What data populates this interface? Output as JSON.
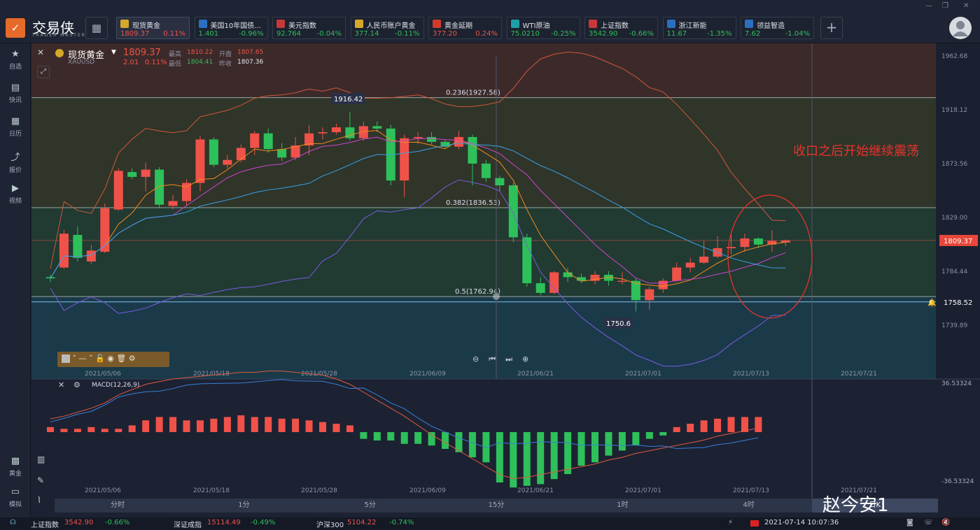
{
  "app": {
    "name": "交易侠",
    "subtitle": "TRADER MASTER"
  },
  "tickers": [
    {
      "name": "现货黄金",
      "price": "1809.37",
      "change": "0.11%",
      "dir": "up",
      "icon": "gold-icon",
      "color": "#d6a82a"
    },
    {
      "name": "美国10年国债...",
      "price": "1.401",
      "change": "-0.96%",
      "dir": "down",
      "icon": "bar-chart-icon",
      "color": "#2b6fc0"
    },
    {
      "name": "美元指数",
      "price": "92.764",
      "change": "-0.04%",
      "dir": "down",
      "icon": "us-flag-icon",
      "color": "#c8383a"
    },
    {
      "name": "人民币账户黄金",
      "price": "377.14",
      "change": "-0.11%",
      "dir": "down",
      "icon": "gold-icon",
      "color": "#d6a82a"
    },
    {
      "name": "黄金延期",
      "price": "377.20",
      "change": "0.24%",
      "dir": "up",
      "icon": "gold-bars-icon",
      "color": "#d33a2e"
    },
    {
      "name": "WTI原油",
      "price": "75.0210",
      "change": "-0.25%",
      "dir": "down",
      "icon": "oil-icon",
      "color": "#1da0a8"
    },
    {
      "name": "上证指数",
      "price": "3542.90",
      "change": "-0.66%",
      "dir": "down",
      "icon": "sse-icon",
      "color": "#c8383a"
    },
    {
      "name": "浙江新能",
      "price": "11.67",
      "change": "-1.35%",
      "dir": "down",
      "icon": "bar-chart-icon",
      "color": "#2b6fc0"
    },
    {
      "name": "领益智造",
      "price": "7.62",
      "change": "-1.04%",
      "dir": "down",
      "icon": "bar-chart-icon",
      "color": "#2b6fc0"
    }
  ],
  "sidebar_top": [
    {
      "label": "自选",
      "icon": "star-icon"
    },
    {
      "label": "快讯",
      "icon": "news-icon"
    },
    {
      "label": "日历",
      "icon": "calendar-icon"
    },
    {
      "label": "报价",
      "icon": "quote-icon"
    },
    {
      "label": "视频",
      "icon": "video-icon"
    }
  ],
  "sidebar_bottom": [
    {
      "label": "黄金",
      "icon": "gold-grid-icon"
    },
    {
      "label": "模拟",
      "icon": "wallet-icon"
    }
  ],
  "header": {
    "symbol": "现货黄金",
    "code": "XAUUSD",
    "price": "1809.37",
    "change": "2.01",
    "change_pct": "0.11%",
    "high_label": "最高",
    "high": "1810.22",
    "open_label": "开盘",
    "open": "1807.65",
    "low_label": "最低",
    "low": "1804.41",
    "prev_label": "昨收",
    "prev": "1807.36"
  },
  "annotation": "收口之后开始继续震荡",
  "price_axis": [
    "1962.68",
    "1918.12",
    "1873.56",
    "1829.00",
    "1784.44",
    "1739.89"
  ],
  "current_price_tag": "1809.37",
  "alert_price": "1758.52",
  "fib": [
    "0.236(1927.58)",
    "0.382(1836.53)",
    "0.5(1762.94)"
  ],
  "high_marker": "1916.42",
  "low_marker": "1750.6",
  "dates": [
    "2021/05/06",
    "2021/05/18",
    "2021/05/28",
    "2021/06/09",
    "2021/06/21",
    "2021/07/01",
    "2021/07/13",
    "2021/07/21"
  ],
  "macd": {
    "label": "MACD(12,26,9)",
    "max": "36.53324",
    "min": "-36.53324"
  },
  "timeframes": [
    "分时",
    "1分",
    "5分",
    "15分",
    "1时",
    "4时",
    "日K"
  ],
  "active_timeframe": "日K",
  "footer": {
    "idx1_name": "上证指数",
    "idx1_val": "3542.90",
    "idx1_chg": "-0.66%",
    "idx2_name": "深证成指",
    "idx2_val": "15114.49",
    "idx2_chg": "-0.49%",
    "idx3_name": "沪深300",
    "idx3_val": "5104.22",
    "idx3_chg": "-0.74%",
    "datetime": "2021-07-14 10:07:36"
  },
  "watermark": "赵今安1",
  "colors": {
    "up": "#f0524a",
    "down": "#2ec05a",
    "ma5": "#f28a1e",
    "ma10": "#d243d0",
    "ma20": "#3aa0e8",
    "boll": "#7a5ce0"
  }
}
